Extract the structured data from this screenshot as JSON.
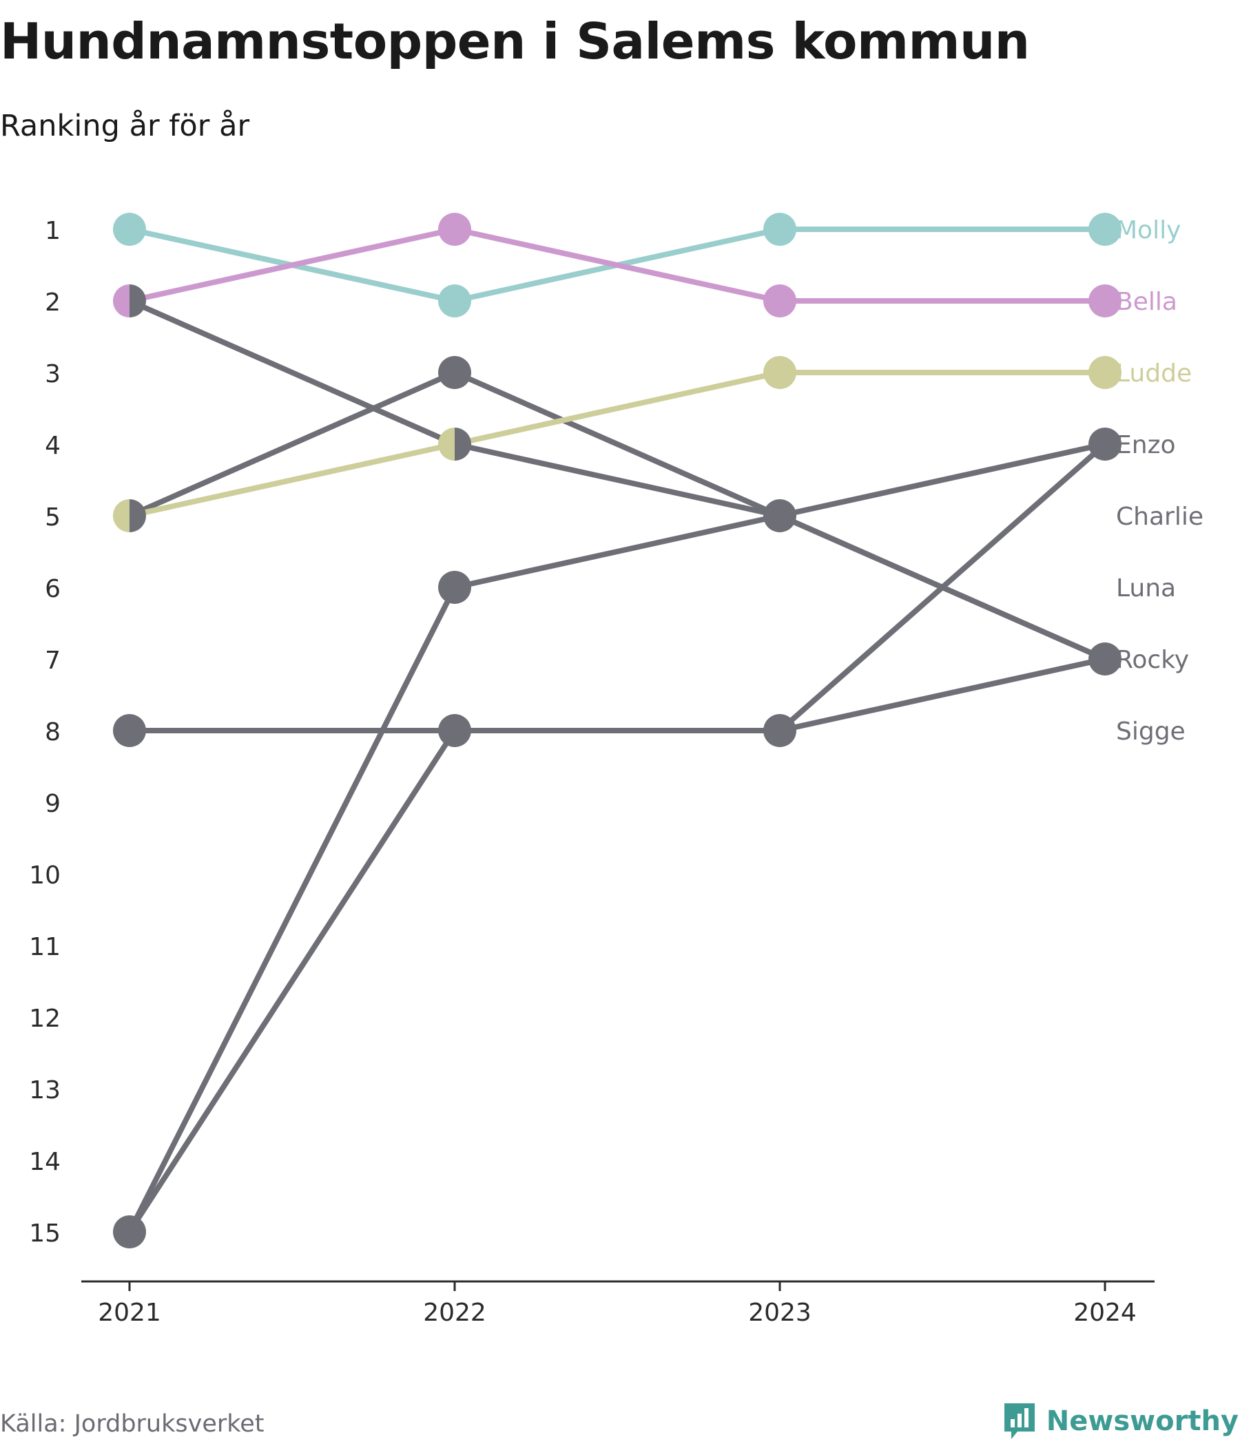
{
  "header": {
    "title": "Hundnamnstoppen i Salems kommun",
    "subtitle": "Ranking år för år"
  },
  "footer": {
    "source": "Källa: Jordbruksverket",
    "brand": "Newsworthy",
    "brand_icon": "bar-chart-speech-bubble-icon"
  },
  "colors": {
    "Molly": "#99cecd",
    "Bella": "#cc99cf",
    "Ludde": "#cdce9a",
    "gray": "#6e6e76",
    "axis": "#2b2b2b",
    "brand": "#3d9b94"
  },
  "chart_data": {
    "type": "line",
    "subtype": "bump",
    "title": "Hundnamnstoppen i Salems kommun",
    "subtitle": "Ranking år för år",
    "x": [
      "2021",
      "2022",
      "2023",
      "2024"
    ],
    "y_tick_labels": [
      "1",
      "2",
      "3",
      "4",
      "5",
      "6",
      "7",
      "8",
      "9",
      "10",
      "11",
      "12",
      "13",
      "14",
      "15"
    ],
    "ylim": [
      1,
      15
    ],
    "y_reversed": true,
    "grid": false,
    "legend": "direct labels at right end of lines",
    "series": [
      {
        "name": "Molly",
        "values": [
          1,
          2,
          1,
          1
        ],
        "color": "#99cecd"
      },
      {
        "name": "Bella",
        "values": [
          2,
          1,
          2,
          2
        ],
        "color": "#cc99cf"
      },
      {
        "name": "Ludde",
        "values": [
          5,
          4,
          3,
          3
        ],
        "color": "#cdce9a"
      },
      {
        "name": "Enzo",
        "values": [
          15,
          8,
          8,
          4
        ],
        "color": "#6e6e76"
      },
      {
        "name": "Charlie",
        "values": [
          2,
          4,
          5,
          7
        ],
        "color": "#6e6e76"
      },
      {
        "name": "Luna",
        "values": [
          5,
          3,
          5,
          7
        ],
        "color": "#6e6e76"
      },
      {
        "name": "Rocky",
        "values": [
          8,
          8,
          8,
          7
        ],
        "color": "#6e6e76"
      },
      {
        "name": "Sigge",
        "values": [
          15,
          6,
          5,
          4
        ],
        "color": "#6e6e76"
      }
    ],
    "end_labels": [
      {
        "text": "Molly",
        "rank": 1,
        "color": "#99cecd"
      },
      {
        "text": "Bella",
        "rank": 2,
        "color": "#cc99cf"
      },
      {
        "text": "Ludde",
        "rank": 3,
        "color": "#cdce9a"
      },
      {
        "text": "Enzo",
        "rank": 4,
        "color": "#6e6e76"
      },
      {
        "text": "Charlie",
        "rank": 5,
        "color": "#6e6e76"
      },
      {
        "text": "Luna",
        "rank": 6,
        "color": "#6e6e76"
      },
      {
        "text": "Rocky",
        "rank": 7,
        "color": "#6e6e76"
      },
      {
        "text": "Sigge",
        "rank": 8,
        "color": "#6e6e76"
      }
    ]
  }
}
